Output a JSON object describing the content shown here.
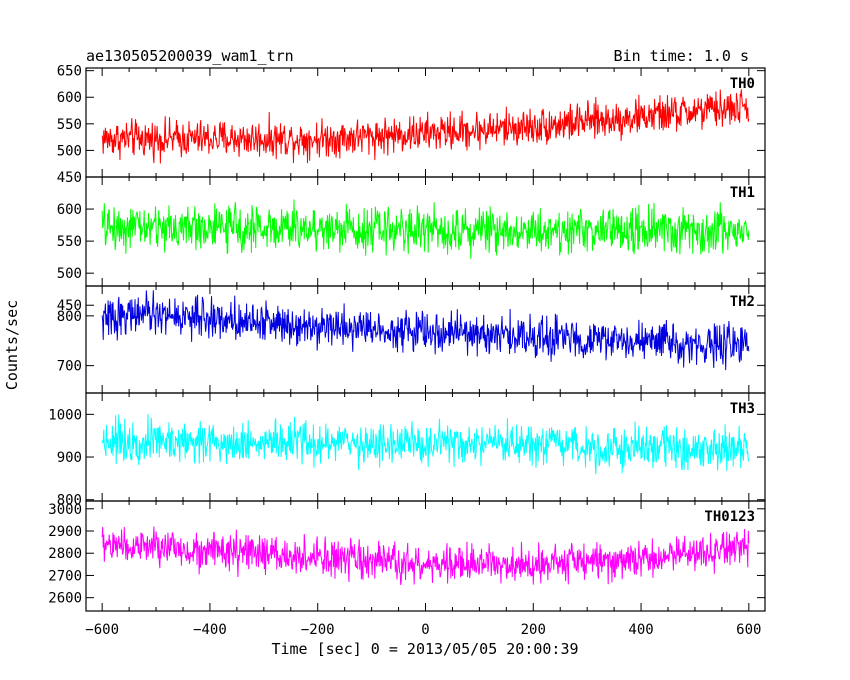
{
  "header": {
    "title": "ae130505200039_wam1_trn",
    "bin_time": "Bin time: 1.0 s"
  },
  "chart_data": {
    "type": "line",
    "xlabel": "Time [sec] 0 = 2013/05/05 20:00:39",
    "ylabel": "Counts/sec",
    "xlim": [
      -630,
      630
    ],
    "x_data_range": [
      -600,
      600
    ],
    "x_step": 1,
    "x_ticks": [
      -600,
      -400,
      -200,
      0,
      200,
      400,
      600
    ],
    "x_tick_labels": [
      "−600",
      "−400",
      "−200",
      "0",
      "200",
      "400",
      "600"
    ],
    "grid": false,
    "panels": [
      {
        "name": "TH0",
        "color": "#ff0000",
        "ylim": [
          450,
          655
        ],
        "y_ticks": [
          450,
          500,
          550,
          600,
          650
        ],
        "y_tick_labels": [
          "450",
          "500",
          "550",
          "600",
          "650"
        ],
        "trend": {
          "x": [
            -600,
            -200,
            0,
            200,
            600
          ],
          "y": [
            522,
            522,
            532,
            545,
            582
          ]
        },
        "noise": 30
      },
      {
        "name": "TH1",
        "color": "#00ff00",
        "ylim": [
          480,
          650
        ],
        "y_ticks": [
          450,
          500,
          550,
          600
        ],
        "y_tick_labels": [
          "450",
          "500",
          "550",
          "600"
        ],
        "trend": {
          "x": [
            -600,
            600
          ],
          "y": [
            572,
            565
          ]
        },
        "noise": 30
      },
      {
        "name": "TH2",
        "color": "#0000e0",
        "ylim": [
          645,
          860
        ],
        "y_ticks": [
          700,
          800
        ],
        "y_tick_labels": [
          "700",
          "800"
        ],
        "trend": {
          "x": [
            -600,
            -550,
            0,
            600
          ],
          "y": [
            790,
            805,
            768,
            738
          ]
        },
        "noise": 34
      },
      {
        "name": "TH3",
        "color": "#00ffff",
        "ylim": [
          797,
          1050
        ],
        "y_ticks": [
          800,
          900,
          1000
        ],
        "y_tick_labels": [
          "800",
          "900",
          "1000"
        ],
        "trend": {
          "x": [
            -600,
            600
          ],
          "y": [
            940,
            918
          ]
        },
        "noise": 42
      },
      {
        "name": "TH0123",
        "color": "#ff00ff",
        "ylim": [
          2540,
          3035
        ],
        "y_ticks": [
          2600,
          2700,
          2800,
          2900,
          3000
        ],
        "y_tick_labels": [
          "2600",
          "2700",
          "2800",
          "2900",
          "3000"
        ],
        "trend": {
          "x": [
            -600,
            -400,
            0,
            400,
            600
          ],
          "y": [
            2840,
            2810,
            2745,
            2770,
            2830
          ]
        },
        "noise": 72
      }
    ]
  }
}
